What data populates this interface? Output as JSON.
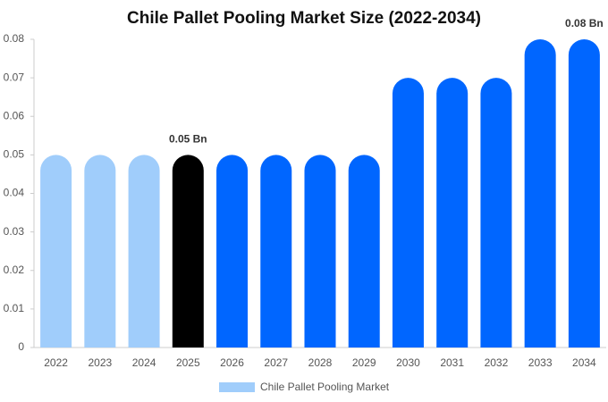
{
  "chart_data": {
    "type": "bar",
    "title": "Chile Pallet Pooling Market Size (2022-2034)",
    "categories": [
      "2022",
      "2023",
      "2024",
      "2025",
      "2026",
      "2027",
      "2028",
      "2029",
      "2030",
      "2031",
      "2032",
      "2033",
      "2034"
    ],
    "series": [
      {
        "name": "Chile Pallet Pooling Market",
        "color": "#a0cdfb",
        "values": [
          0.05,
          0.05,
          0.05,
          0.05,
          0.05,
          0.05,
          0.05,
          0.05,
          0.07,
          0.07,
          0.07,
          0.08,
          0.08
        ],
        "colors": [
          "#a0cdfb",
          "#a0cdfb",
          "#a0cdfb",
          "#000000",
          "#0066ff",
          "#0066ff",
          "#0066ff",
          "#0066ff",
          "#0066ff",
          "#0066ff",
          "#0066ff",
          "#0066ff",
          "#0066ff"
        ],
        "value_labels": [
          null,
          null,
          null,
          "0.05 Bn",
          null,
          null,
          null,
          null,
          null,
          null,
          null,
          null,
          "0.08 Bn"
        ]
      }
    ],
    "ylim": [
      0,
      0.08
    ],
    "yticks": [
      0,
      0.01,
      0.02,
      0.03,
      0.04,
      0.05,
      0.06,
      0.07,
      0.08
    ],
    "grid": false,
    "legend": "bottom"
  }
}
